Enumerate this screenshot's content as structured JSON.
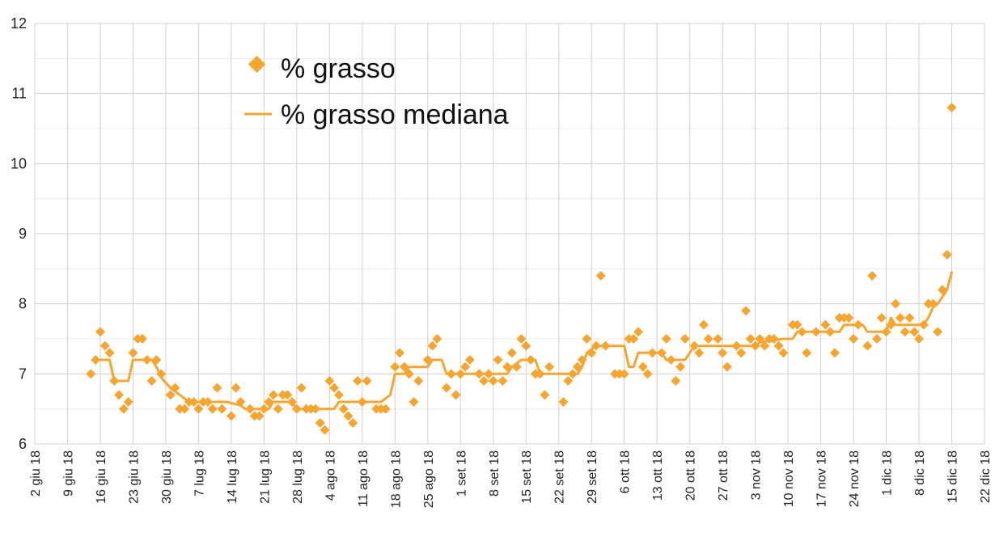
{
  "chart_data": {
    "type": "scatter",
    "xlim": [
      "2018-06-02",
      "2018-12-22"
    ],
    "ylim": [
      6,
      12
    ],
    "y_ticks": [
      6,
      7,
      8,
      9,
      10,
      11,
      12
    ],
    "x_ticks": [
      {
        "date": "2018-06-02",
        "label": "2 giu 18"
      },
      {
        "date": "2018-06-09",
        "label": "9 giu 18"
      },
      {
        "date": "2018-06-16",
        "label": "16 giu 18"
      },
      {
        "date": "2018-06-23",
        "label": "23 giu 18"
      },
      {
        "date": "2018-06-30",
        "label": "30 giu 18"
      },
      {
        "date": "2018-07-07",
        "label": "7 lug 18"
      },
      {
        "date": "2018-07-14",
        "label": "14 lug 18"
      },
      {
        "date": "2018-07-21",
        "label": "21 lug 18"
      },
      {
        "date": "2018-07-28",
        "label": "28 lug 18"
      },
      {
        "date": "2018-08-04",
        "label": "4 ago 18"
      },
      {
        "date": "2018-08-11",
        "label": "11 ago 18"
      },
      {
        "date": "2018-08-18",
        "label": "18 ago 18"
      },
      {
        "date": "2018-08-25",
        "label": "25 ago 18"
      },
      {
        "date": "2018-09-01",
        "label": "1 set 18"
      },
      {
        "date": "2018-09-08",
        "label": "8 set 18"
      },
      {
        "date": "2018-09-15",
        "label": "15 set 18"
      },
      {
        "date": "2018-09-22",
        "label": "22 set 18"
      },
      {
        "date": "2018-09-29",
        "label": "29 set 18"
      },
      {
        "date": "2018-10-06",
        "label": "6 ott 18"
      },
      {
        "date": "2018-10-13",
        "label": "13 ott 18"
      },
      {
        "date": "2018-10-20",
        "label": "20 ott 18"
      },
      {
        "date": "2018-10-27",
        "label": "27 ott 18"
      },
      {
        "date": "2018-11-03",
        "label": "3 nov 18"
      },
      {
        "date": "2018-11-10",
        "label": "10 nov 18"
      },
      {
        "date": "2018-11-17",
        "label": "17 nov 18"
      },
      {
        "date": "2018-11-24",
        "label": "24 nov 18"
      },
      {
        "date": "2018-12-01",
        "label": "1 dic 18"
      },
      {
        "date": "2018-12-08",
        "label": "8 dic 18"
      },
      {
        "date": "2018-12-15",
        "label": "15 dic 18"
      },
      {
        "date": "2018-12-22",
        "label": "22 dic 18"
      }
    ],
    "grid": true,
    "legend_position": "top-left",
    "series": [
      {
        "name": "% grasso",
        "kind": "scatter",
        "marker": "diamond",
        "color": "#f7a531",
        "points": [
          [
            "2018-06-14",
            7.0
          ],
          [
            "2018-06-15",
            7.2
          ],
          [
            "2018-06-16",
            7.6
          ],
          [
            "2018-06-17",
            7.4
          ],
          [
            "2018-06-18",
            7.3
          ],
          [
            "2018-06-19",
            6.9
          ],
          [
            "2018-06-20",
            6.7
          ],
          [
            "2018-06-21",
            6.5
          ],
          [
            "2018-06-22",
            6.6
          ],
          [
            "2018-06-23",
            7.3
          ],
          [
            "2018-06-24",
            7.5
          ],
          [
            "2018-06-25",
            7.5
          ],
          [
            "2018-06-26",
            7.2
          ],
          [
            "2018-06-27",
            6.9
          ],
          [
            "2018-06-28",
            7.2
          ],
          [
            "2018-06-29",
            7.0
          ],
          [
            "2018-07-01",
            6.7
          ],
          [
            "2018-07-02",
            6.8
          ],
          [
            "2018-07-03",
            6.5
          ],
          [
            "2018-07-04",
            6.5
          ],
          [
            "2018-07-05",
            6.6
          ],
          [
            "2018-07-06",
            6.6
          ],
          [
            "2018-07-07",
            6.5
          ],
          [
            "2018-07-08",
            6.6
          ],
          [
            "2018-07-09",
            6.6
          ],
          [
            "2018-07-10",
            6.5
          ],
          [
            "2018-07-11",
            6.8
          ],
          [
            "2018-07-12",
            6.5
          ],
          [
            "2018-07-14",
            6.4
          ],
          [
            "2018-07-15",
            6.8
          ],
          [
            "2018-07-16",
            6.6
          ],
          [
            "2018-07-18",
            6.5
          ],
          [
            "2018-07-19",
            6.4
          ],
          [
            "2018-07-20",
            6.4
          ],
          [
            "2018-07-21",
            6.5
          ],
          [
            "2018-07-22",
            6.6
          ],
          [
            "2018-07-23",
            6.7
          ],
          [
            "2018-07-24",
            6.5
          ],
          [
            "2018-07-25",
            6.7
          ],
          [
            "2018-07-26",
            6.7
          ],
          [
            "2018-07-27",
            6.6
          ],
          [
            "2018-07-28",
            6.5
          ],
          [
            "2018-07-29",
            6.8
          ],
          [
            "2018-07-30",
            6.5
          ],
          [
            "2018-07-31",
            6.5
          ],
          [
            "2018-08-01",
            6.5
          ],
          [
            "2018-08-02",
            6.3
          ],
          [
            "2018-08-03",
            6.2
          ],
          [
            "2018-08-04",
            6.9
          ],
          [
            "2018-08-05",
            6.8
          ],
          [
            "2018-08-06",
            6.7
          ],
          [
            "2018-08-07",
            6.5
          ],
          [
            "2018-08-08",
            6.4
          ],
          [
            "2018-08-09",
            6.3
          ],
          [
            "2018-08-10",
            6.9
          ],
          [
            "2018-08-11",
            6.6
          ],
          [
            "2018-08-12",
            6.9
          ],
          [
            "2018-08-14",
            6.5
          ],
          [
            "2018-08-15",
            6.5
          ],
          [
            "2018-08-16",
            6.5
          ],
          [
            "2018-08-18",
            7.1
          ],
          [
            "2018-08-19",
            7.3
          ],
          [
            "2018-08-20",
            7.1
          ],
          [
            "2018-08-21",
            7.0
          ],
          [
            "2018-08-22",
            6.6
          ],
          [
            "2018-08-23",
            6.9
          ],
          [
            "2018-08-25",
            7.2
          ],
          [
            "2018-08-26",
            7.4
          ],
          [
            "2018-08-27",
            7.5
          ],
          [
            "2018-08-29",
            6.8
          ],
          [
            "2018-08-30",
            7.0
          ],
          [
            "2018-08-31",
            6.7
          ],
          [
            "2018-09-01",
            7.0
          ],
          [
            "2018-09-02",
            7.1
          ],
          [
            "2018-09-03",
            7.2
          ],
          [
            "2018-09-05",
            7.0
          ],
          [
            "2018-09-06",
            6.9
          ],
          [
            "2018-09-07",
            7.0
          ],
          [
            "2018-09-08",
            6.9
          ],
          [
            "2018-09-09",
            7.2
          ],
          [
            "2018-09-10",
            6.9
          ],
          [
            "2018-09-11",
            7.1
          ],
          [
            "2018-09-12",
            7.3
          ],
          [
            "2018-09-13",
            7.1
          ],
          [
            "2018-09-14",
            7.5
          ],
          [
            "2018-09-15",
            7.4
          ],
          [
            "2018-09-16",
            7.2
          ],
          [
            "2018-09-17",
            7.0
          ],
          [
            "2018-09-18",
            7.0
          ],
          [
            "2018-09-19",
            6.7
          ],
          [
            "2018-09-20",
            7.1
          ],
          [
            "2018-09-23",
            6.6
          ],
          [
            "2018-09-24",
            6.9
          ],
          [
            "2018-09-25",
            7.0
          ],
          [
            "2018-09-26",
            7.1
          ],
          [
            "2018-09-27",
            7.2
          ],
          [
            "2018-09-28",
            7.5
          ],
          [
            "2018-09-29",
            7.3
          ],
          [
            "2018-09-30",
            7.4
          ],
          [
            "2018-10-01",
            8.4
          ],
          [
            "2018-10-02",
            7.4
          ],
          [
            "2018-10-04",
            7.0
          ],
          [
            "2018-10-05",
            7.0
          ],
          [
            "2018-10-06",
            7.0
          ],
          [
            "2018-10-07",
            7.5
          ],
          [
            "2018-10-08",
            7.5
          ],
          [
            "2018-10-09",
            7.6
          ],
          [
            "2018-10-10",
            7.1
          ],
          [
            "2018-10-11",
            7.0
          ],
          [
            "2018-10-12",
            7.3
          ],
          [
            "2018-10-14",
            7.3
          ],
          [
            "2018-10-15",
            7.5
          ],
          [
            "2018-10-16",
            7.2
          ],
          [
            "2018-10-17",
            6.9
          ],
          [
            "2018-10-18",
            7.1
          ],
          [
            "2018-10-19",
            7.5
          ],
          [
            "2018-10-21",
            7.4
          ],
          [
            "2018-10-22",
            7.3
          ],
          [
            "2018-10-23",
            7.7
          ],
          [
            "2018-10-24",
            7.5
          ],
          [
            "2018-10-26",
            7.5
          ],
          [
            "2018-10-27",
            7.3
          ],
          [
            "2018-10-28",
            7.1
          ],
          [
            "2018-10-30",
            7.4
          ],
          [
            "2018-10-31",
            7.3
          ],
          [
            "2018-11-01",
            7.9
          ],
          [
            "2018-11-02",
            7.5
          ],
          [
            "2018-11-03",
            7.4
          ],
          [
            "2018-11-04",
            7.5
          ],
          [
            "2018-11-05",
            7.4
          ],
          [
            "2018-11-06",
            7.5
          ],
          [
            "2018-11-07",
            7.5
          ],
          [
            "2018-11-08",
            7.4
          ],
          [
            "2018-11-09",
            7.3
          ],
          [
            "2018-11-11",
            7.7
          ],
          [
            "2018-11-12",
            7.7
          ],
          [
            "2018-11-13",
            7.6
          ],
          [
            "2018-11-14",
            7.3
          ],
          [
            "2018-11-16",
            7.6
          ],
          [
            "2018-11-18",
            7.7
          ],
          [
            "2018-11-19",
            7.6
          ],
          [
            "2018-11-20",
            7.3
          ],
          [
            "2018-11-21",
            7.8
          ],
          [
            "2018-11-22",
            7.8
          ],
          [
            "2018-11-23",
            7.8
          ],
          [
            "2018-11-24",
            7.5
          ],
          [
            "2018-11-25",
            7.7
          ],
          [
            "2018-11-27",
            7.4
          ],
          [
            "2018-11-28",
            8.4
          ],
          [
            "2018-11-29",
            7.5
          ],
          [
            "2018-11-30",
            7.8
          ],
          [
            "2018-12-01",
            7.6
          ],
          [
            "2018-12-02",
            7.7
          ],
          [
            "2018-12-03",
            8.0
          ],
          [
            "2018-12-04",
            7.8
          ],
          [
            "2018-12-05",
            7.6
          ],
          [
            "2018-12-06",
            7.8
          ],
          [
            "2018-12-07",
            7.6
          ],
          [
            "2018-12-08",
            7.5
          ],
          [
            "2018-12-09",
            7.7
          ],
          [
            "2018-12-10",
            8.0
          ],
          [
            "2018-12-11",
            8.0
          ],
          [
            "2018-12-12",
            7.6
          ],
          [
            "2018-12-13",
            8.2
          ],
          [
            "2018-12-14",
            8.7
          ],
          [
            "2018-12-15",
            10.8
          ]
        ]
      },
      {
        "name": "% grasso mediana",
        "kind": "line",
        "color": "#f7a531",
        "points": [
          [
            "2018-06-15",
            7.2
          ],
          [
            "2018-06-18",
            7.2
          ],
          [
            "2018-06-19",
            6.9
          ],
          [
            "2018-06-22",
            6.9
          ],
          [
            "2018-06-23",
            7.2
          ],
          [
            "2018-06-27",
            7.2
          ],
          [
            "2018-06-28",
            7.1
          ],
          [
            "2018-06-29",
            6.95
          ],
          [
            "2018-07-01",
            6.8
          ],
          [
            "2018-07-03",
            6.7
          ],
          [
            "2018-07-05",
            6.6
          ],
          [
            "2018-07-13",
            6.6
          ],
          [
            "2018-07-16",
            6.55
          ],
          [
            "2018-07-17",
            6.5
          ],
          [
            "2018-07-22",
            6.5
          ],
          [
            "2018-07-23",
            6.6
          ],
          [
            "2018-07-27",
            6.6
          ],
          [
            "2018-07-28",
            6.5
          ],
          [
            "2018-08-05",
            6.5
          ],
          [
            "2018-08-06",
            6.6
          ],
          [
            "2018-08-15",
            6.6
          ],
          [
            "2018-08-17",
            6.7
          ],
          [
            "2018-08-18",
            7.0
          ],
          [
            "2018-08-20",
            7.0
          ],
          [
            "2018-08-21",
            7.1
          ],
          [
            "2018-08-25",
            7.1
          ],
          [
            "2018-08-26",
            7.2
          ],
          [
            "2018-08-28",
            7.2
          ],
          [
            "2018-08-29",
            7.0
          ],
          [
            "2018-09-11",
            7.0
          ],
          [
            "2018-09-12",
            7.1
          ],
          [
            "2018-09-14",
            7.2
          ],
          [
            "2018-09-17",
            7.2
          ],
          [
            "2018-09-18",
            7.0
          ],
          [
            "2018-09-26",
            7.0
          ],
          [
            "2018-09-27",
            7.1
          ],
          [
            "2018-09-28",
            7.3
          ],
          [
            "2018-09-30",
            7.4
          ],
          [
            "2018-10-06",
            7.4
          ],
          [
            "2018-10-07",
            7.1
          ],
          [
            "2018-10-08",
            7.1
          ],
          [
            "2018-10-09",
            7.3
          ],
          [
            "2018-10-14",
            7.3
          ],
          [
            "2018-10-15",
            7.2
          ],
          [
            "2018-10-19",
            7.2
          ],
          [
            "2018-10-20",
            7.3
          ],
          [
            "2018-10-21",
            7.4
          ],
          [
            "2018-11-03",
            7.4
          ],
          [
            "2018-11-04",
            7.45
          ],
          [
            "2018-11-09",
            7.5
          ],
          [
            "2018-11-11",
            7.5
          ],
          [
            "2018-11-12",
            7.6
          ],
          [
            "2018-11-21",
            7.6
          ],
          [
            "2018-11-22",
            7.7
          ],
          [
            "2018-11-26",
            7.7
          ],
          [
            "2018-11-27",
            7.6
          ],
          [
            "2018-12-01",
            7.6
          ],
          [
            "2018-12-02",
            7.8
          ],
          [
            "2018-12-03",
            7.7
          ],
          [
            "2018-12-09",
            7.7
          ],
          [
            "2018-12-10",
            7.8
          ],
          [
            "2018-12-11",
            7.95
          ],
          [
            "2018-12-12",
            8.0
          ],
          [
            "2018-12-13",
            8.1
          ],
          [
            "2018-12-14",
            8.2
          ],
          [
            "2018-12-15",
            8.45
          ]
        ]
      }
    ]
  }
}
